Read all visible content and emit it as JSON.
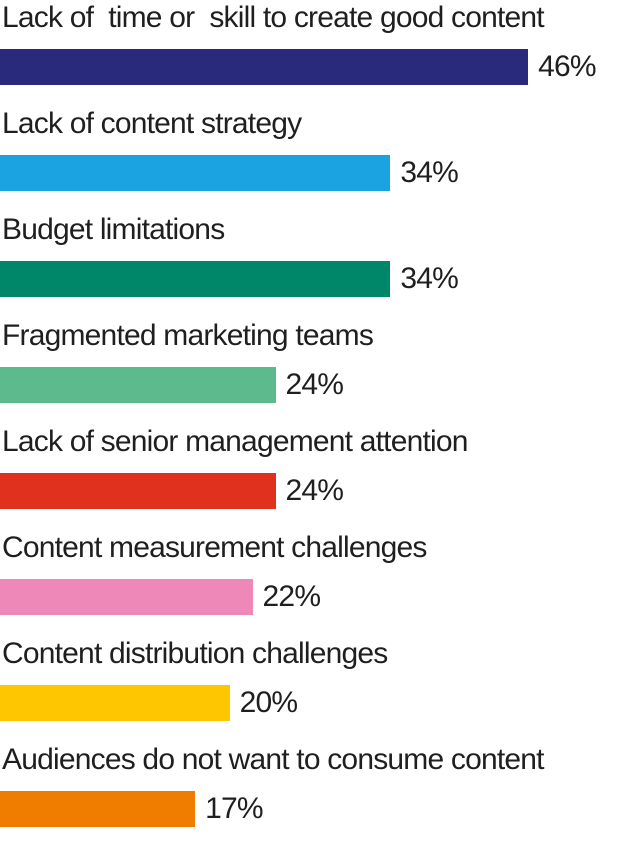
{
  "chart_data": {
    "type": "bar",
    "orientation": "horizontal",
    "categories": [
      "Lack of  time or  skill to create good content",
      "Lack of content strategy",
      "Budget limitations",
      "Fragmented marketing teams",
      "Lack of senior management attention",
      "Content measurement challenges",
      "Content distribution challenges",
      "Audiences do not want to consume content"
    ],
    "values": [
      46,
      34,
      34,
      24,
      24,
      22,
      20,
      17
    ],
    "value_labels": [
      "46%",
      "34%",
      "34%",
      "24%",
      "24%",
      "22%",
      "20%",
      "17%"
    ],
    "colors": [
      "#2a2a7d",
      "#1aa3e0",
      "#00876a",
      "#5dba8c",
      "#e0301e",
      "#ee88b8",
      "#fdc600",
      "#f07c00"
    ],
    "unit": "%",
    "grid": false,
    "legend": "none"
  }
}
